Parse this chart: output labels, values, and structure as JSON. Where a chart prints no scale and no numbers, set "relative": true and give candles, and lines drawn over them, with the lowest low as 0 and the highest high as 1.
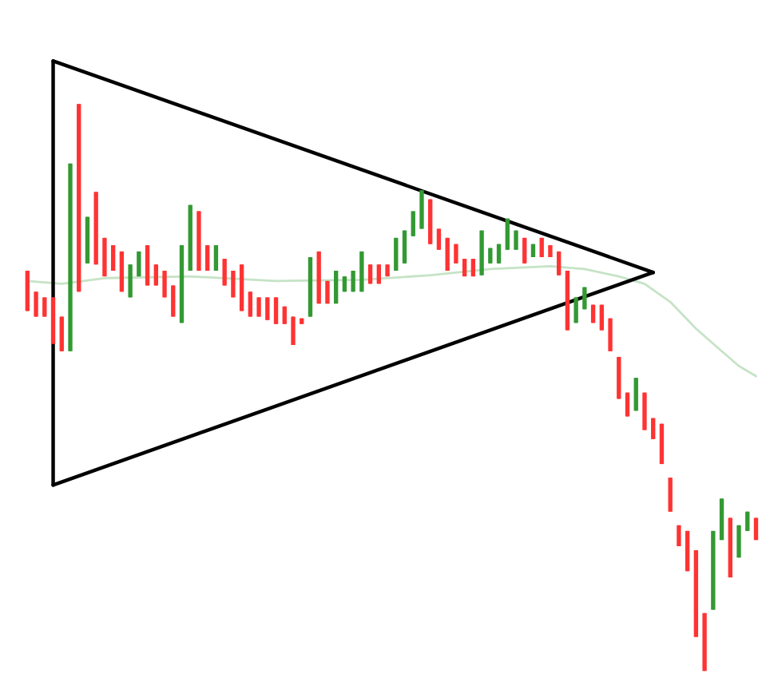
{
  "chart_data": {
    "type": "candlestick",
    "relative": true,
    "categories": [
      null,
      null,
      null,
      null,
      null,
      null,
      null,
      null,
      null,
      null,
      null,
      null,
      null,
      null,
      null,
      null,
      null,
      null,
      null,
      null,
      null,
      null,
      null,
      null,
      null,
      null,
      null,
      null,
      null,
      null,
      null,
      null,
      null,
      null,
      null,
      null,
      null,
      null,
      null,
      null,
      null,
      null,
      null,
      null,
      null,
      null,
      null,
      null,
      null,
      null,
      null,
      null,
      null,
      null,
      null,
      null,
      null,
      null,
      null,
      null,
      null,
      null,
      null,
      null,
      null,
      null,
      null,
      null,
      null,
      null,
      null,
      null,
      null,
      null,
      null,
      null,
      null,
      null,
      null,
      null,
      null,
      null,
      null,
      null,
      null,
      null
    ],
    "ohlc": [
      [
        0.706,
        0.706,
        0.635,
        0.635
      ],
      [
        0.669,
        0.669,
        0.625,
        0.625
      ],
      [
        0.659,
        0.659,
        0.625,
        0.625
      ],
      [
        0.659,
        0.659,
        0.577,
        0.577
      ],
      [
        0.625,
        0.625,
        0.564,
        0.564
      ],
      [
        0.564,
        0.895,
        0.564,
        0.895
      ],
      [
        1.0,
        1.0,
        0.669,
        0.669
      ],
      [
        0.719,
        0.801,
        0.719,
        0.801
      ],
      [
        0.845,
        0.845,
        0.717,
        0.717
      ],
      [
        0.764,
        0.764,
        0.696,
        0.696
      ],
      [
        0.751,
        0.751,
        0.706,
        0.706
      ],
      [
        0.74,
        0.74,
        0.669,
        0.669
      ],
      [
        0.659,
        0.717,
        0.659,
        0.717
      ],
      [
        0.696,
        0.74,
        0.696,
        0.74
      ],
      [
        0.751,
        0.751,
        0.68,
        0.68
      ],
      [
        0.717,
        0.717,
        0.68,
        0.68
      ],
      [
        0.706,
        0.706,
        0.659,
        0.659
      ],
      [
        0.68,
        0.68,
        0.625,
        0.625
      ],
      [
        0.614,
        0.751,
        0.614,
        0.751
      ],
      [
        0.706,
        0.822,
        0.706,
        0.822
      ],
      [
        0.811,
        0.811,
        0.706,
        0.706
      ],
      [
        0.751,
        0.751,
        0.706,
        0.706
      ],
      [
        0.706,
        0.751,
        0.706,
        0.751
      ],
      [
        0.727,
        0.727,
        0.68,
        0.68
      ],
      [
        0.706,
        0.706,
        0.659,
        0.659
      ],
      [
        0.717,
        0.717,
        0.635,
        0.635
      ],
      [
        0.669,
        0.669,
        0.625,
        0.625
      ],
      [
        0.659,
        0.659,
        0.625,
        0.625
      ],
      [
        0.659,
        0.659,
        0.619,
        0.619
      ],
      [
        0.659,
        0.659,
        0.612,
        0.612
      ],
      [
        0.643,
        0.643,
        0.612,
        0.612
      ],
      [
        0.625,
        0.625,
        0.575,
        0.575
      ],
      [
        0.622,
        0.622,
        0.612,
        0.612
      ],
      [
        0.625,
        0.73,
        0.625,
        0.73
      ],
      [
        0.74,
        0.74,
        0.648,
        0.648
      ],
      [
        0.688,
        0.688,
        0.648,
        0.648
      ],
      [
        0.648,
        0.706,
        0.648,
        0.706
      ],
      [
        0.669,
        0.696,
        0.669,
        0.696
      ],
      [
        0.669,
        0.706,
        0.669,
        0.706
      ],
      [
        0.669,
        0.74,
        0.669,
        0.74
      ],
      [
        0.717,
        0.717,
        0.683,
        0.683
      ],
      [
        0.717,
        0.717,
        0.683,
        0.683
      ],
      [
        0.717,
        0.717,
        0.696,
        0.696
      ],
      [
        0.706,
        0.764,
        0.706,
        0.764
      ],
      [
        0.719,
        0.777,
        0.719,
        0.777
      ],
      [
        0.767,
        0.811,
        0.767,
        0.811
      ],
      [
        0.78,
        0.848,
        0.78,
        0.848
      ],
      [
        0.832,
        0.832,
        0.753,
        0.753
      ],
      [
        0.78,
        0.78,
        0.743,
        0.743
      ],
      [
        0.764,
        0.764,
        0.706,
        0.706
      ],
      [
        0.753,
        0.753,
        0.719,
        0.719
      ],
      [
        0.727,
        0.727,
        0.696,
        0.696
      ],
      [
        0.727,
        0.727,
        0.696,
        0.696
      ],
      [
        0.698,
        0.777,
        0.698,
        0.777
      ],
      [
        0.719,
        0.746,
        0.719,
        0.746
      ],
      [
        0.719,
        0.753,
        0.719,
        0.753
      ],
      [
        0.743,
        0.798,
        0.743,
        0.798
      ],
      [
        0.743,
        0.777,
        0.743,
        0.777
      ],
      [
        0.764,
        0.764,
        0.719,
        0.719
      ],
      [
        0.73,
        0.753,
        0.73,
        0.753
      ],
      [
        0.764,
        0.764,
        0.73,
        0.73
      ],
      [
        0.751,
        0.751,
        0.73,
        0.73
      ],
      [
        0.74,
        0.74,
        0.698,
        0.698
      ],
      [
        0.706,
        0.706,
        0.601,
        0.601
      ],
      [
        0.614,
        0.659,
        0.614,
        0.659
      ],
      [
        0.638,
        0.677,
        0.638,
        0.677
      ],
      [
        0.646,
        0.646,
        0.614,
        0.614
      ],
      [
        0.646,
        0.646,
        0.601,
        0.601
      ],
      [
        0.622,
        0.622,
        0.564,
        0.564
      ],
      [
        0.554,
        0.554,
        0.48,
        0.48
      ],
      [
        0.491,
        0.491,
        0.449,
        0.449
      ],
      [
        0.459,
        0.517,
        0.459,
        0.517
      ],
      [
        0.491,
        0.491,
        0.425,
        0.425
      ],
      [
        0.446,
        0.446,
        0.409,
        0.409
      ],
      [
        0.436,
        0.436,
        0.365,
        0.365
      ],
      [
        0.341,
        0.341,
        0.281,
        0.281
      ],
      [
        0.257,
        0.257,
        0.22,
        0.22
      ],
      [
        0.247,
        0.247,
        0.176,
        0.176
      ],
      [
        0.213,
        0.213,
        0.06,
        0.06
      ],
      [
        0.102,
        0.102,
        0.0,
        0.0
      ],
      [
        0.108,
        0.247,
        0.108,
        0.247
      ],
      [
        0.231,
        0.304,
        0.231,
        0.304
      ],
      [
        0.27,
        0.27,
        0.165,
        0.165
      ],
      [
        0.2,
        0.257,
        0.2,
        0.257
      ],
      [
        0.247,
        0.281,
        0.247,
        0.281
      ],
      [
        0.27,
        0.27,
        0.231,
        0.231
      ]
    ],
    "colors": [
      "#ff3333",
      "#ff3333",
      "#ff3333",
      "#ff3333",
      "#ff3333",
      "#339933",
      "#ff3333",
      "#339933",
      "#ff3333",
      "#ff3333",
      "#ff3333",
      "#ff3333",
      "#339933",
      "#339933",
      "#ff3333",
      "#ff3333",
      "#ff3333",
      "#ff3333",
      "#339933",
      "#339933",
      "#ff3333",
      "#ff3333",
      "#339933",
      "#ff3333",
      "#ff3333",
      "#ff3333",
      "#ff3333",
      "#ff3333",
      "#ff3333",
      "#ff3333",
      "#ff3333",
      "#ff3333",
      "#ff3333",
      "#339933",
      "#ff3333",
      "#ff3333",
      "#339933",
      "#339933",
      "#339933",
      "#339933",
      "#ff3333",
      "#ff3333",
      "#ff3333",
      "#339933",
      "#339933",
      "#339933",
      "#339933",
      "#ff3333",
      "#ff3333",
      "#ff3333",
      "#ff3333",
      "#ff3333",
      "#ff3333",
      "#339933",
      "#339933",
      "#339933",
      "#339933",
      "#339933",
      "#ff3333",
      "#339933",
      "#ff3333",
      "#ff3333",
      "#ff3333",
      "#ff3333",
      "#339933",
      "#339933",
      "#ff3333",
      "#ff3333",
      "#ff3333",
      "#ff3333",
      "#ff3333",
      "#339933",
      "#ff3333",
      "#ff3333",
      "#ff3333",
      "#ff3333",
      "#ff3333",
      "#ff3333",
      "#ff3333",
      "#ff3333",
      "#339933",
      "#339933",
      "#ff3333",
      "#339933",
      "#339933",
      "#ff3333"
    ],
    "series": [
      {
        "type": "line",
        "color": "#c6e3c6",
        "values": [
          0.688,
          null,
          null,
          null,
          0.683,
          null,
          null,
          null,
          null,
          0.693,
          null,
          null,
          null,
          null,
          null,
          null,
          null,
          null,
          null,
          0.696,
          null,
          null,
          null,
          null,
          null,
          null,
          null,
          null,
          null,
          0.688,
          null,
          null,
          null,
          null,
          null,
          null,
          null,
          null,
          null,
          0.69,
          null,
          null,
          null,
          null,
          null,
          null,
          null,
          0.698,
          null,
          null,
          null,
          null,
          null,
          null,
          0.709,
          null,
          null,
          null,
          null,
          null,
          null,
          0.714,
          null,
          null,
          null,
          0.709,
          null,
          null,
          null,
          0.696,
          null,
          null,
          0.683,
          null,
          null,
          0.651,
          null,
          null,
          0.604,
          null,
          null,
          0.564,
          null,
          0.538,
          null,
          0.52
        ]
      },
      {
        "type": "line",
        "color": "#000000",
        "values": [
          null,
          null,
          null,
          1.076,
          null,
          null,
          null,
          null,
          null,
          null,
          null,
          null,
          null,
          null,
          null,
          null,
          null,
          null,
          null,
          null,
          null,
          null,
          null,
          null,
          null,
          null,
          null,
          null,
          null,
          null,
          null,
          null,
          null,
          null,
          null,
          null,
          null,
          null,
          null,
          null,
          null,
          null,
          null,
          null,
          null,
          null,
          null,
          null,
          null,
          null,
          null,
          null,
          null,
          null,
          null,
          null,
          null,
          null,
          null,
          null,
          null,
          null,
          null,
          null,
          null,
          null,
          null,
          null,
          null,
          null,
          null,
          null,
          null,
          0.703,
          null,
          null,
          null,
          null,
          null,
          null,
          null,
          null,
          null,
          null,
          null,
          null
        ]
      },
      {
        "type": "line",
        "color": "#000000",
        "values": [
          null,
          null,
          null,
          0.328,
          null,
          null,
          null,
          null,
          null,
          null,
          null,
          null,
          null,
          null,
          null,
          null,
          null,
          null,
          null,
          null,
          null,
          null,
          null,
          null,
          null,
          null,
          null,
          null,
          null,
          null,
          null,
          null,
          null,
          null,
          null,
          null,
          null,
          null,
          null,
          null,
          null,
          null,
          null,
          null,
          null,
          null,
          null,
          null,
          null,
          null,
          null,
          null,
          null,
          null,
          null,
          null,
          null,
          null,
          null,
          null,
          null,
          null,
          null,
          null,
          null,
          null,
          null,
          null,
          null,
          null,
          null,
          null,
          null,
          0.703,
          null,
          null,
          null,
          null,
          null,
          null,
          null,
          null,
          null,
          null,
          null,
          null
        ]
      }
    ]
  }
}
